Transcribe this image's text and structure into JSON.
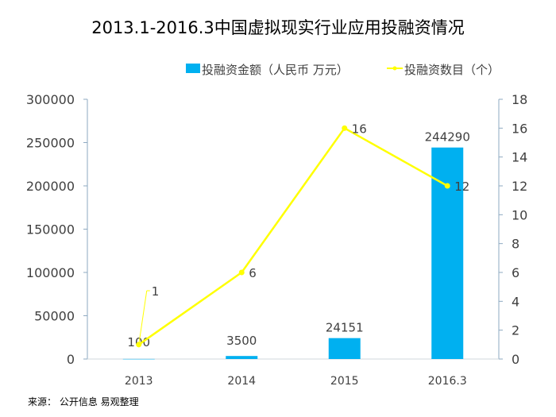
{
  "chart_data": {
    "type": "bar+line",
    "title": "2013.1-2016.3中国虚拟现实行业应用投融资情况",
    "categories": [
      "2013",
      "2014",
      "2015",
      "2016.3"
    ],
    "series": [
      {
        "name": "投融资金额（人民币 万元）",
        "type": "bar",
        "axis": "left",
        "color": "#00b0f0",
        "values": [
          100,
          3500,
          24151,
          244290
        ]
      },
      {
        "name": "投融资数目（个）",
        "type": "line",
        "axis": "right",
        "color": "#ffff00",
        "values": [
          1,
          6,
          16,
          12
        ]
      }
    ],
    "left_axis": {
      "ylim": [
        0,
        300000
      ],
      "ticks": [
        0,
        50000,
        100000,
        150000,
        200000,
        250000,
        300000
      ]
    },
    "right_axis": {
      "ylim": [
        0,
        18
      ],
      "ticks": [
        0,
        2,
        4,
        6,
        8,
        10,
        12,
        14,
        16,
        18
      ]
    },
    "legend_position": "top-right",
    "grid": false
  },
  "source": "来源： 公开信息 易观整理"
}
